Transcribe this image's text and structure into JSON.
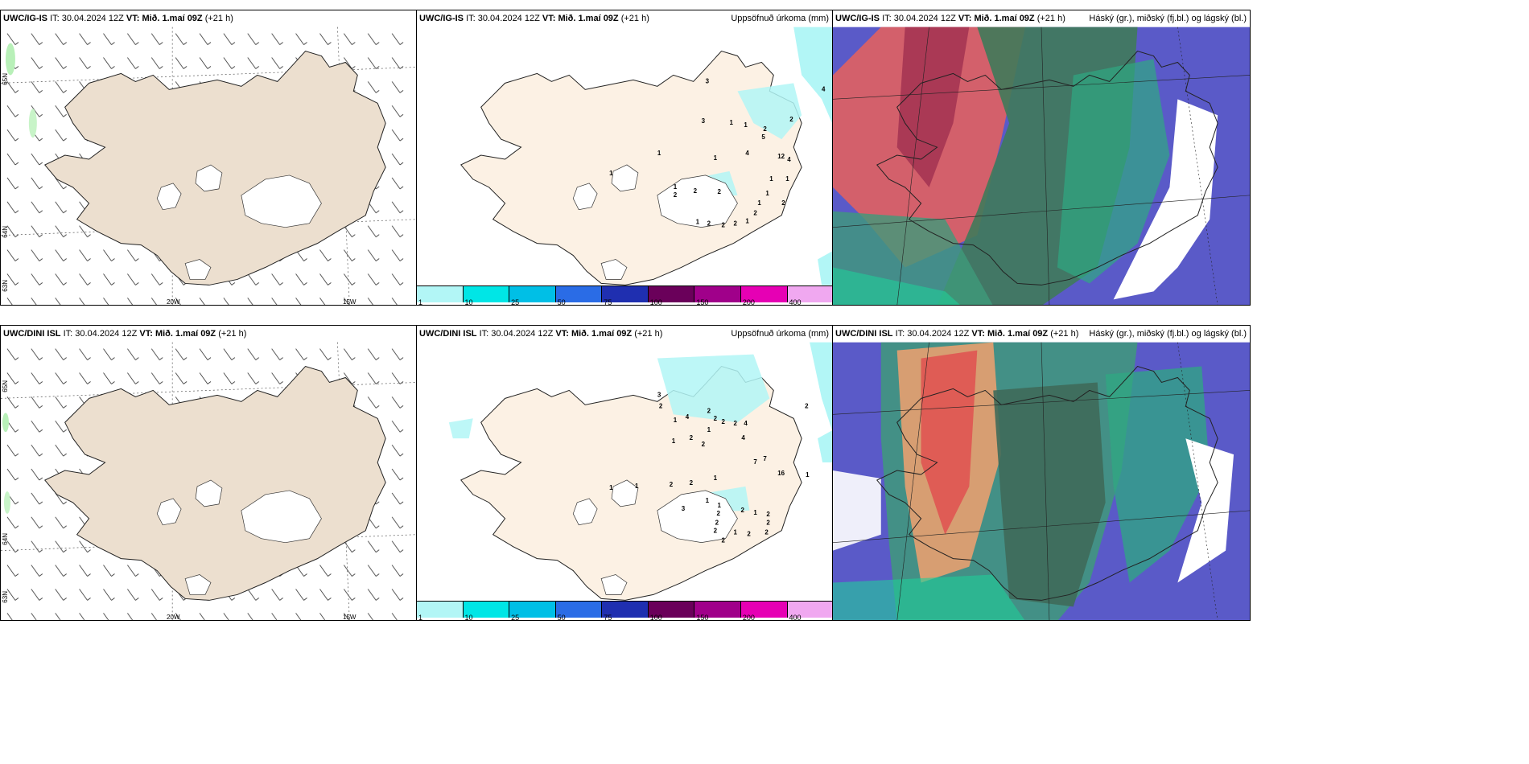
{
  "rows": [
    {
      "model": "UWC/IG-IS",
      "it_label": "IT:",
      "it_value": "30.04.2024 12Z",
      "vt_label": "VT:",
      "vt_value": "Mið. 1.maí 09Z",
      "lead": "(+21 h)"
    },
    {
      "model": "UWC/DINI ISL",
      "it_label": "IT:",
      "it_value": "30.04.2024 12Z",
      "vt_label": "VT:",
      "vt_value": "Mið. 1.maí 09Z",
      "lead": "(+21 h)"
    }
  ],
  "precip_title": "Uppsöfnuð úrkoma (mm)",
  "cloud_title": "Háský (gr.), miðský (fj.bl.) og lágský (bl.)",
  "grid_labels": {
    "lat_65": "65N",
    "lat_64": "64N",
    "lat_63": "63N",
    "lon_20": "20W",
    "lon_15": "15W"
  },
  "colorbar": {
    "levels": [
      "1",
      "10",
      "25",
      "50",
      "75",
      "100",
      "150",
      "200",
      "400"
    ],
    "colors": [
      "#b2f6f6",
      "#00e6e6",
      "#00bfe6",
      "#2a6ce6",
      "#1f2fb0",
      "#6a005a",
      "#a0008a",
      "#e600b4",
      "#f0a8f0"
    ]
  },
  "precip_numbers_top": [
    "3",
    "4",
    "2",
    "3",
    "1",
    "1",
    "2",
    "5",
    "4",
    "12",
    "4",
    "1",
    "1",
    "1",
    "1",
    "2",
    "2",
    "2",
    "1",
    "1",
    "1",
    "2",
    "1",
    "2",
    "2",
    "2",
    "1",
    "1",
    "2"
  ],
  "precip_numbers_bottom": [
    "3",
    "2",
    "2",
    "1",
    "4",
    "2",
    "2",
    "1",
    "2",
    "2",
    "4",
    "1",
    "2",
    "2",
    "4",
    "7",
    "7",
    "16",
    "1",
    "2",
    "1",
    "1",
    "1",
    "2",
    "1",
    "3",
    "1",
    "2",
    "2",
    "2",
    "2",
    "1",
    "2",
    "2",
    "2",
    "2",
    "1",
    "2"
  ],
  "colors": {
    "land": "#ecdfcf",
    "land_precip": "#fcf1e4",
    "ocean_cloud": "#5a5ac8"
  }
}
